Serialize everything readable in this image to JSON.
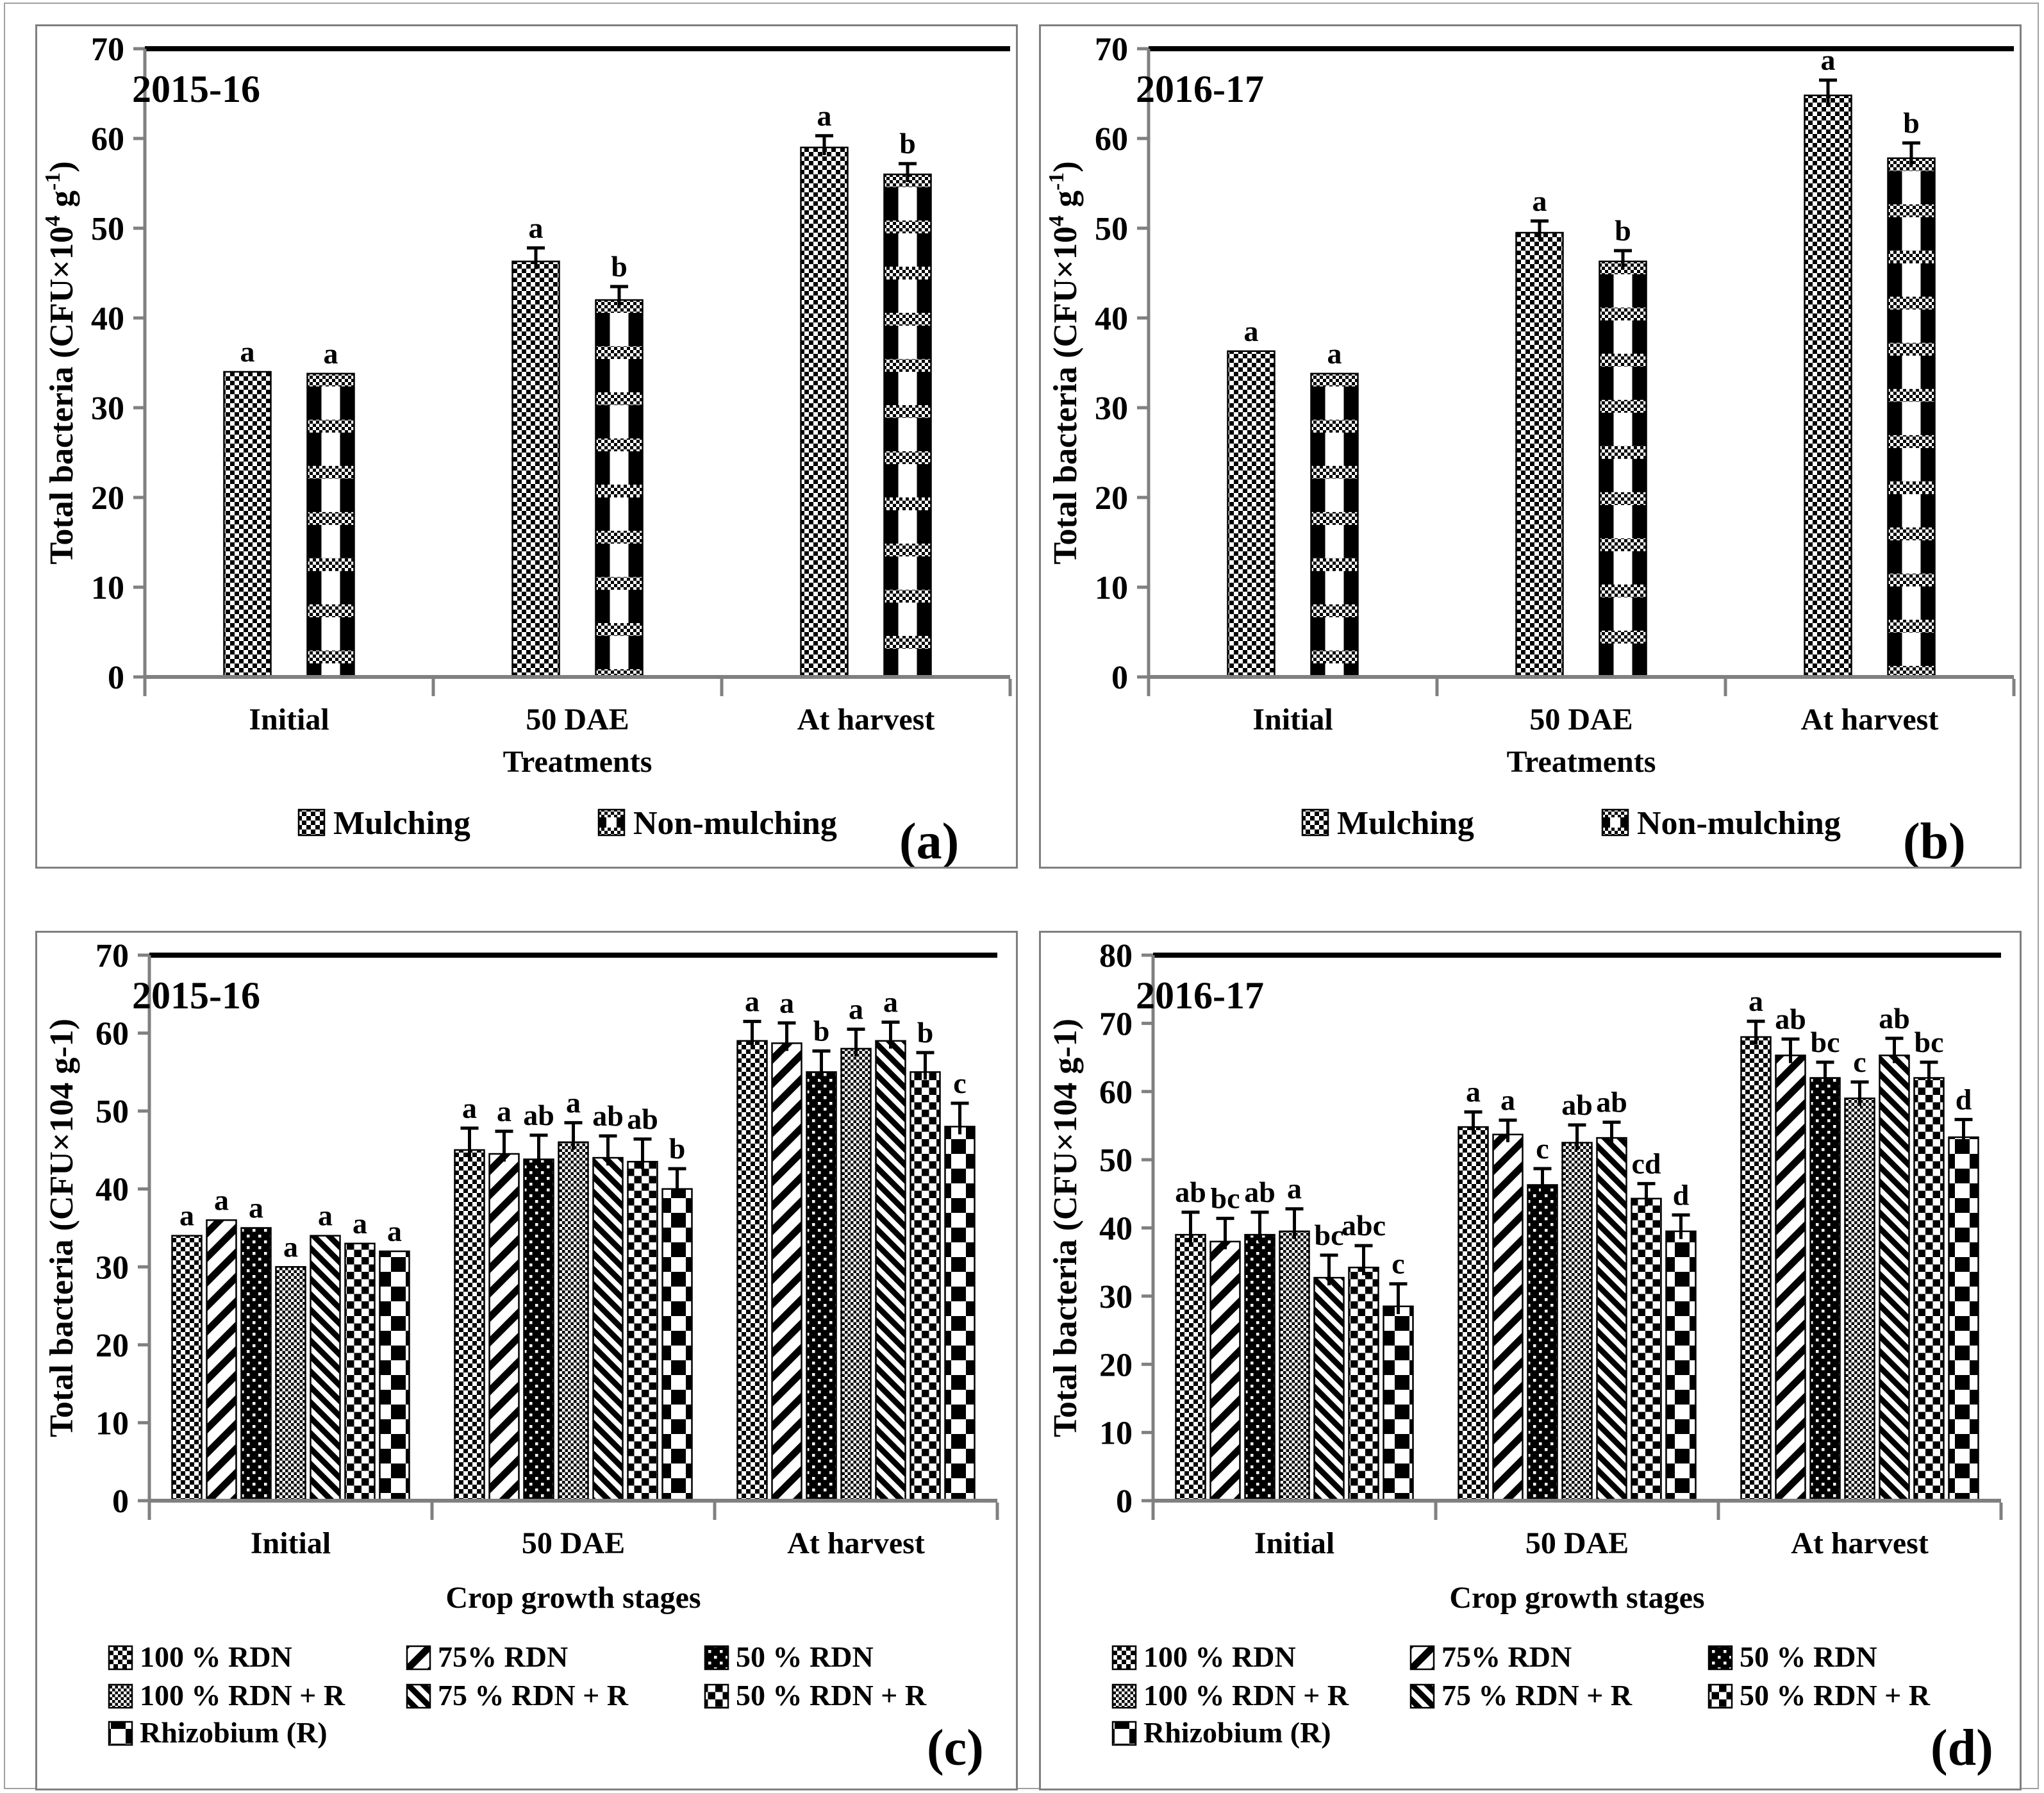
{
  "figure": {
    "background": "#ffffff",
    "panel_border_color": "#7f7f7f",
    "axis_color": "#808080",
    "bar_color": "#000000"
  },
  "chart_data": [
    {
      "panel": "a",
      "type": "bar",
      "title": "2015-16",
      "panel_label": "(a)",
      "xlabel": "Treatments",
      "ylabel_parts": [
        {
          "text": "Total bacteria (CFU×10",
          "sup": false
        },
        {
          "text": "4",
          "sup": true
        },
        {
          "text": " g",
          "sup": false
        },
        {
          "text": "-1",
          "sup": true
        },
        {
          "text": ")",
          "sup": false
        }
      ],
      "ylim": [
        0,
        70
      ],
      "ytick_step": 10,
      "categories": [
        "Initial",
        "50 DAE",
        "At harvest"
      ],
      "series": [
        {
          "name": "Mulching",
          "pattern": "dense-checker",
          "values": [
            34,
            46.3,
            59
          ],
          "errors": [
            0,
            1.5,
            1.3
          ],
          "letters": [
            "a",
            "a",
            "a"
          ]
        },
        {
          "name": "Non-mulching",
          "pattern": "block-checker-columns",
          "values": [
            33.8,
            42,
            56
          ],
          "errors": [
            0,
            1.5,
            1.2
          ],
          "letters": [
            "a",
            "b",
            "b"
          ]
        }
      ]
    },
    {
      "panel": "b",
      "type": "bar",
      "title": "2016-17",
      "panel_label": "(b)",
      "xlabel": "Treatments",
      "ylabel_parts": [
        {
          "text": "Total bacteria (CFU×10",
          "sup": false
        },
        {
          "text": "4",
          "sup": true
        },
        {
          "text": " g",
          "sup": false
        },
        {
          "text": "-1",
          "sup": true
        },
        {
          "text": ")",
          "sup": false
        }
      ],
      "ylim": [
        0,
        70
      ],
      "ytick_step": 10,
      "categories": [
        "Initial",
        "50 DAE",
        "At harvest"
      ],
      "series": [
        {
          "name": "Mulching",
          "pattern": "dense-checker",
          "values": [
            36.3,
            49.5,
            64.8
          ],
          "errors": [
            0,
            1.3,
            1.7
          ],
          "letters": [
            "a",
            "a",
            "a"
          ]
        },
        {
          "name": "Non-mulching",
          "pattern": "block-checker-columns",
          "values": [
            33.8,
            46.3,
            57.8
          ],
          "errors": [
            0,
            1.2,
            1.7
          ],
          "letters": [
            "a",
            "b",
            "b"
          ]
        }
      ]
    },
    {
      "panel": "c",
      "type": "bar",
      "title": "2015-16",
      "panel_label": "(c)",
      "xlabel": "Crop growth stages",
      "ylabel_parts": [
        {
          "text": "Total bacteria (CFU×104 g-1)",
          "sup": false
        }
      ],
      "ylim": [
        0,
        70
      ],
      "ytick_step": 10,
      "categories": [
        "Initial",
        "50 DAE",
        "At harvest"
      ],
      "series": [
        {
          "name": "100 % RDN",
          "pattern": "dense-checker",
          "values": [
            34,
            45,
            59
          ],
          "errors": [
            0,
            2.8,
            2.5
          ],
          "letters": [
            "a",
            "a",
            "a"
          ]
        },
        {
          "name": "75% RDN",
          "pattern": "wide-diagonal-stripes",
          "values": [
            36,
            44.5,
            58.7
          ],
          "errors": [
            0,
            2.9,
            2.6
          ],
          "letters": [
            "a",
            "a",
            "a"
          ]
        },
        {
          "name": "50 % RDN",
          "pattern": "black-white-dots",
          "values": [
            35,
            43.8,
            55
          ],
          "errors": [
            0,
            3.1,
            2.7
          ],
          "letters": [
            "a",
            "ab",
            "b"
          ]
        },
        {
          "name": "100 % RDN + R",
          "pattern": "fine-checker",
          "values": [
            30,
            46,
            58
          ],
          "errors": [
            0,
            2.5,
            2.5
          ],
          "letters": [
            "a",
            "a",
            "a"
          ]
        },
        {
          "name": "75 % RDN + R",
          "pattern": "dense-diagonal-stripes",
          "values": [
            34,
            44,
            59
          ],
          "errors": [
            0,
            2.8,
            2.4
          ],
          "letters": [
            "a",
            "ab",
            "a"
          ]
        },
        {
          "name": "50 % RDN + R",
          "pattern": "medium-checker",
          "values": [
            33,
            43.5,
            55
          ],
          "errors": [
            0,
            2.9,
            2.5
          ],
          "letters": [
            "a",
            "ab",
            "b"
          ]
        },
        {
          "name": "Rhizobium (R)",
          "pattern": "large-checker",
          "values": [
            32,
            40,
            48
          ],
          "errors": [
            0,
            2.6,
            3.0
          ],
          "letters": [
            "a",
            "b",
            "c"
          ]
        }
      ]
    },
    {
      "panel": "d",
      "type": "bar",
      "title": "2016-17",
      "panel_label": "(d)",
      "xlabel": "Crop growth stages",
      "ylabel_parts": [
        {
          "text": "Total bacteria (CFU×104 g-1)",
          "sup": false
        }
      ],
      "ylim": [
        0,
        80
      ],
      "ytick_step": 10,
      "categories": [
        "Initial",
        "50 DAE",
        "At harvest"
      ],
      "series": [
        {
          "name": "100 % RDN",
          "pattern": "dense-checker",
          "values": [
            39,
            54.8,
            68
          ],
          "errors": [
            3.3,
            2.2,
            2.3
          ],
          "letters": [
            "ab",
            "a",
            "a"
          ]
        },
        {
          "name": "75% RDN",
          "pattern": "wide-diagonal-stripes",
          "values": [
            38,
            53.7,
            65.3
          ],
          "errors": [
            3.4,
            2.1,
            2.4
          ],
          "letters": [
            "bc",
            "a",
            "ab"
          ]
        },
        {
          "name": "50 % RDN",
          "pattern": "black-white-dots",
          "values": [
            39,
            46.3,
            62
          ],
          "errors": [
            3.3,
            2.4,
            2.3
          ],
          "letters": [
            "ab",
            "c",
            "bc"
          ]
        },
        {
          "name": "100 % RDN + R",
          "pattern": "fine-checker",
          "values": [
            39.5,
            52.5,
            59
          ],
          "errors": [
            3.3,
            2.6,
            2.4
          ],
          "letters": [
            "a",
            "ab",
            "c"
          ]
        },
        {
          "name": "75 % RDN + R",
          "pattern": "dense-diagonal-stripes",
          "values": [
            32.7,
            53.2,
            65.3
          ],
          "errors": [
            3.3,
            2.3,
            2.5
          ],
          "letters": [
            "bc",
            "ab",
            "ab"
          ]
        },
        {
          "name": "50 % RDN + R",
          "pattern": "medium-checker",
          "values": [
            34.2,
            44.3,
            62
          ],
          "errors": [
            3.2,
            2.2,
            2.3
          ],
          "letters": [
            "abc",
            "cd",
            "bc"
          ]
        },
        {
          "name": "Rhizobium (R)",
          "pattern": "large-checker",
          "values": [
            28.5,
            39.5,
            53.3
          ],
          "errors": [
            3.3,
            2.4,
            2.6
          ],
          "letters": [
            "c",
            "d",
            "d"
          ]
        }
      ]
    }
  ]
}
